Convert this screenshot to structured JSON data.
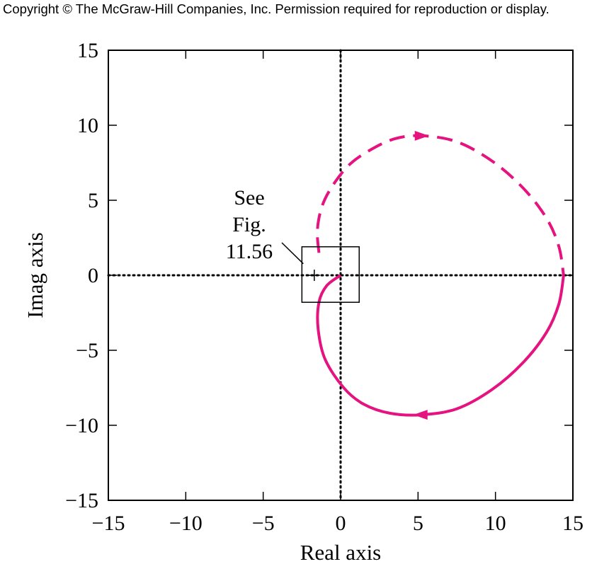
{
  "copyright": "Copyright © The McGraw-Hill Companies, Inc. Permission required for reproduction or display.",
  "chart_data": {
    "type": "line",
    "xlabel": "Real axis",
    "ylabel": "Imag axis",
    "xlim": [
      -15,
      15
    ],
    "ylim": [
      -15,
      15
    ],
    "xticks": [
      -15,
      -10,
      -5,
      0,
      5,
      10,
      15
    ],
    "yticks": [
      -15,
      -10,
      -5,
      0,
      5,
      10,
      15
    ],
    "xtick_labels": [
      "−15",
      "−10",
      "−5",
      "0",
      "5",
      "10",
      "15"
    ],
    "ytick_labels": [
      "−15",
      "−10",
      "−5",
      "0",
      "5",
      "10",
      "15"
    ],
    "grid": false,
    "axes_lines": "dotted lines through the origin",
    "color": "#e5137f",
    "series": [
      {
        "style": "solid",
        "x": [
          0,
          -0.9,
          -1.4,
          -1.45,
          -1.0,
          0.2,
          1.5,
          3.2,
          5.2,
          7.5,
          9.8,
          11.8,
          13.3,
          14.1,
          14.4
        ],
        "y": [
          0,
          -0.7,
          -1.8,
          -3.6,
          -5.6,
          -7.5,
          -8.6,
          -9.2,
          -9.3,
          -8.9,
          -7.6,
          -5.8,
          -3.8,
          -1.9,
          0
        ]
      },
      {
        "style": "dashed",
        "x": [
          -1.4,
          -1.5,
          -1.2,
          -0.5,
          0.6,
          2.0,
          3.5,
          5.2,
          7.5,
          9.8,
          11.8,
          13.3,
          14.1,
          14.4
        ],
        "y": [
          1.5,
          3.0,
          4.6,
          6.0,
          7.4,
          8.4,
          9.1,
          9.3,
          8.9,
          7.6,
          5.8,
          3.8,
          1.9,
          0
        ]
      }
    ],
    "direction_arrows": [
      {
        "at": [
          5.2,
          9.3
        ],
        "direction": "right"
      },
      {
        "at": [
          5.2,
          -9.3
        ],
        "direction": "left"
      }
    ],
    "critical_point_marker": {
      "x": -1.7,
      "y": 0,
      "symbol": "+"
    },
    "annotations": [
      {
        "lines": [
          "See",
          "Fig.",
          "11.56"
        ],
        "box": {
          "x0": -2.5,
          "x1": 1.2,
          "y0": -1.8,
          "y1": 1.9
        }
      }
    ]
  }
}
